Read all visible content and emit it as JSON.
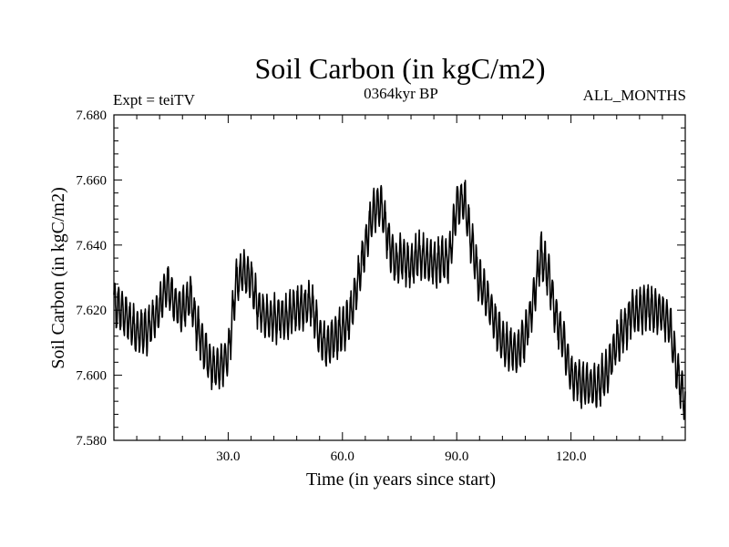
{
  "chart_data": {
    "type": "line",
    "title": "Soil Carbon (in kgC/m2)",
    "subtitle_left": "Expt = teiTV",
    "subtitle_center": "0364kyr BP",
    "subtitle_right": "ALL_MONTHS",
    "xlabel": "Time (in years since start)",
    "ylabel": "Soil Carbon (in kgC/m2)",
    "xlim": [
      0,
      150
    ],
    "ylim": [
      7.58,
      7.68
    ],
    "x_ticks": [
      30,
      60,
      90,
      120
    ],
    "x_tick_labels": [
      "30.0",
      "60.0",
      "90.0",
      "120.0"
    ],
    "y_ticks": [
      7.58,
      7.6,
      7.62,
      7.64,
      7.66,
      7.68
    ],
    "y_tick_labels": [
      "7.580",
      "7.600",
      "7.620",
      "7.640",
      "7.660",
      "7.680"
    ],
    "seasonal_amplitude": 0.006,
    "sampling": "monthly",
    "series": [
      {
        "name": "Soil Carbon",
        "color": "#000000",
        "trend": {
          "x": [
            0,
            2,
            4,
            6,
            9,
            12,
            14,
            16,
            18,
            20,
            22,
            24,
            26,
            28,
            30,
            31,
            32,
            34,
            36,
            38,
            40,
            44,
            48,
            52,
            54,
            56,
            58,
            60,
            62,
            64,
            66,
            68,
            70,
            72,
            74,
            76,
            78,
            80,
            84,
            88,
            90,
            92,
            94,
            96,
            98,
            100,
            102,
            104,
            106,
            108,
            110,
            112,
            114,
            116,
            118,
            120,
            122,
            124,
            126,
            128,
            130,
            132,
            136,
            140,
            144,
            146,
            148,
            150
          ],
          "y": [
            7.622,
            7.62,
            7.617,
            7.613,
            7.614,
            7.621,
            7.628,
            7.622,
            7.62,
            7.624,
            7.614,
            7.607,
            7.602,
            7.603,
            7.606,
            7.616,
            7.628,
            7.632,
            7.63,
            7.62,
            7.618,
            7.617,
            7.62,
            7.622,
            7.612,
            7.609,
            7.612,
            7.614,
            7.618,
            7.628,
            7.64,
            7.65,
            7.653,
            7.642,
            7.634,
            7.636,
            7.633,
            7.637,
            7.634,
            7.636,
            7.652,
            7.654,
            7.64,
            7.628,
            7.624,
            7.616,
            7.61,
            7.608,
            7.607,
            7.612,
            7.622,
            7.637,
            7.632,
            7.618,
            7.61,
            7.6,
            7.598,
            7.597,
            7.596,
            7.598,
            7.602,
            7.61,
            7.619,
            7.621,
            7.619,
            7.615,
            7.6,
            7.592
          ]
        }
      }
    ]
  }
}
